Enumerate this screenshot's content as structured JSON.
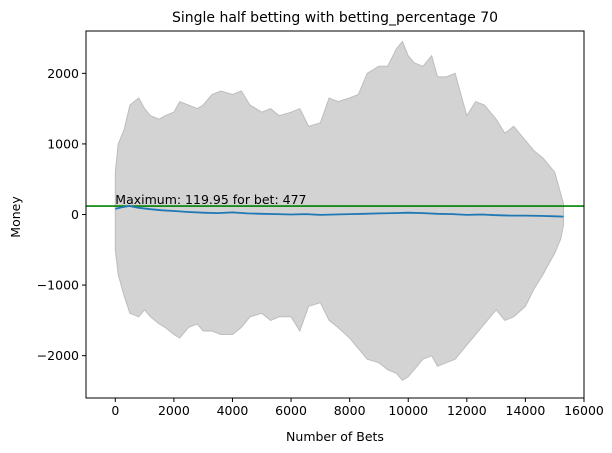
{
  "colors": {
    "background": "#ffffff",
    "band_fill": "#d3d3d3",
    "band_edge": "#bdbdbd",
    "mean_line": "#1f77b4",
    "max_line": "#008000",
    "axis": "#000000"
  },
  "chart_data": {
    "type": "area",
    "title": "Single half betting with betting_percentage 70",
    "xlabel": "Number of Bets",
    "ylabel": "Money",
    "xlim": [
      -1000,
      16000
    ],
    "ylim": [
      -2600,
      2600
    ],
    "xticks": [
      0,
      2000,
      4000,
      6000,
      8000,
      10000,
      12000,
      14000,
      16000
    ],
    "xtick_labels": [
      "0",
      "2000",
      "4000",
      "6000",
      "8000",
      "10000",
      "12000",
      "14000",
      "16000"
    ],
    "yticks": [
      2000,
      1000,
      0,
      -1000,
      -2000
    ],
    "ytick_labels": [
      "2000",
      "1000",
      "0",
      "−1000",
      "−2000"
    ],
    "grid": false,
    "legend": "none",
    "annotation": {
      "text": "Maximum: 119.95 for bet: 477",
      "x": 0,
      "y": 119.95
    },
    "horizontal_line": {
      "y": 119.95
    },
    "series": [
      {
        "role": "band_upper",
        "x": [
          0,
          100,
          300,
          500,
          800,
          1000,
          1200,
          1500,
          1700,
          2000,
          2200,
          2500,
          2800,
          3000,
          3300,
          3600,
          4000,
          4300,
          4600,
          5000,
          5300,
          5600,
          6000,
          6300,
          6600,
          7000,
          7300,
          7600,
          8000,
          8300,
          8600,
          9000,
          9300,
          9600,
          9800,
          10000,
          10200,
          10500,
          10800,
          11000,
          11300,
          11600,
          12000,
          12300,
          12600,
          13000,
          13300,
          13600,
          14000,
          14300,
          14600,
          14800,
          15000,
          15200,
          15300
        ],
        "y": [
          600,
          1000,
          1200,
          1550,
          1650,
          1500,
          1400,
          1350,
          1400,
          1450,
          1600,
          1550,
          1500,
          1550,
          1700,
          1750,
          1700,
          1750,
          1550,
          1450,
          1500,
          1400,
          1450,
          1500,
          1250,
          1300,
          1650,
          1600,
          1650,
          1700,
          2000,
          2100,
          2100,
          2350,
          2450,
          2250,
          2150,
          2100,
          2250,
          1950,
          1950,
          2000,
          1400,
          1600,
          1550,
          1350,
          1150,
          1250,
          1050,
          900,
          800,
          700,
          600,
          300,
          150
        ]
      },
      {
        "role": "band_lower",
        "x": [
          0,
          100,
          300,
          500,
          800,
          1000,
          1200,
          1500,
          1700,
          2000,
          2200,
          2500,
          2800,
          3000,
          3300,
          3600,
          4000,
          4300,
          4600,
          5000,
          5300,
          5600,
          6000,
          6300,
          6600,
          7000,
          7300,
          7600,
          8000,
          8300,
          8600,
          9000,
          9300,
          9600,
          9800,
          10000,
          10200,
          10500,
          10800,
          11000,
          11300,
          11600,
          12000,
          12300,
          12600,
          13000,
          13300,
          13600,
          14000,
          14300,
          14600,
          14800,
          15000,
          15200,
          15300
        ],
        "y": [
          -500,
          -850,
          -1150,
          -1400,
          -1450,
          -1350,
          -1450,
          -1550,
          -1600,
          -1700,
          -1750,
          -1600,
          -1550,
          -1650,
          -1650,
          -1700,
          -1700,
          -1600,
          -1450,
          -1400,
          -1500,
          -1450,
          -1450,
          -1650,
          -1300,
          -1250,
          -1500,
          -1600,
          -1750,
          -1900,
          -2050,
          -2100,
          -2200,
          -2250,
          -2350,
          -2300,
          -2200,
          -2050,
          -2000,
          -2150,
          -2100,
          -2050,
          -1850,
          -1700,
          -1550,
          -1350,
          -1500,
          -1450,
          -1300,
          -1050,
          -850,
          -700,
          -550,
          -350,
          -150
        ]
      },
      {
        "role": "mean",
        "x": [
          0,
          200,
          477,
          800,
          1200,
          1600,
          2000,
          2500,
          3000,
          3500,
          4000,
          4500,
          5000,
          5500,
          6000,
          6500,
          7000,
          7500,
          8000,
          8500,
          9000,
          9500,
          10000,
          10500,
          11000,
          11500,
          12000,
          12500,
          13000,
          13500,
          14000,
          14500,
          15000,
          15300
        ],
        "y": [
          80,
          100,
          119.95,
          95,
          75,
          60,
          50,
          35,
          25,
          20,
          30,
          15,
          10,
          5,
          0,
          5,
          -5,
          0,
          5,
          10,
          15,
          20,
          25,
          20,
          10,
          5,
          -5,
          0,
          -10,
          -15,
          -15,
          -20,
          -25,
          -30
        ]
      }
    ]
  }
}
